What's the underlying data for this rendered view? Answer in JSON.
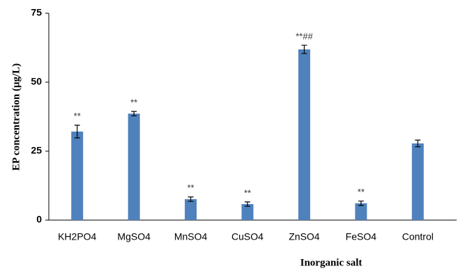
{
  "chart_data": {
    "type": "bar",
    "x_label": "Inorganic salt",
    "y_label": "EP concentration (μg/L)",
    "categories": [
      "KH2PO4",
      "MgSO4",
      "MnSO4",
      "CuSO4",
      "ZnSO4",
      "FeSO4",
      "Control"
    ],
    "values": [
      32.1,
      38.6,
      7.6,
      5.8,
      61.9,
      6.1,
      27.8
    ],
    "errors": [
      2.3,
      0.8,
      0.8,
      0.8,
      1.5,
      0.8,
      1.2
    ],
    "annotations": [
      "**",
      "**",
      "**",
      "**",
      "**##",
      "**",
      null
    ],
    "color": "#4f81bd",
    "ylim": [
      0,
      75
    ],
    "yticks": [
      0,
      25,
      50,
      75
    ],
    "grid": false
  }
}
